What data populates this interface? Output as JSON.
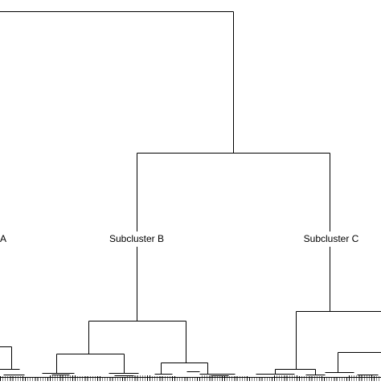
{
  "labels": {
    "a": "A",
    "b": "Subcluster B",
    "c": "Subcluster C"
  },
  "colors": {
    "line": "#000000",
    "background": "#ffffff"
  }
}
